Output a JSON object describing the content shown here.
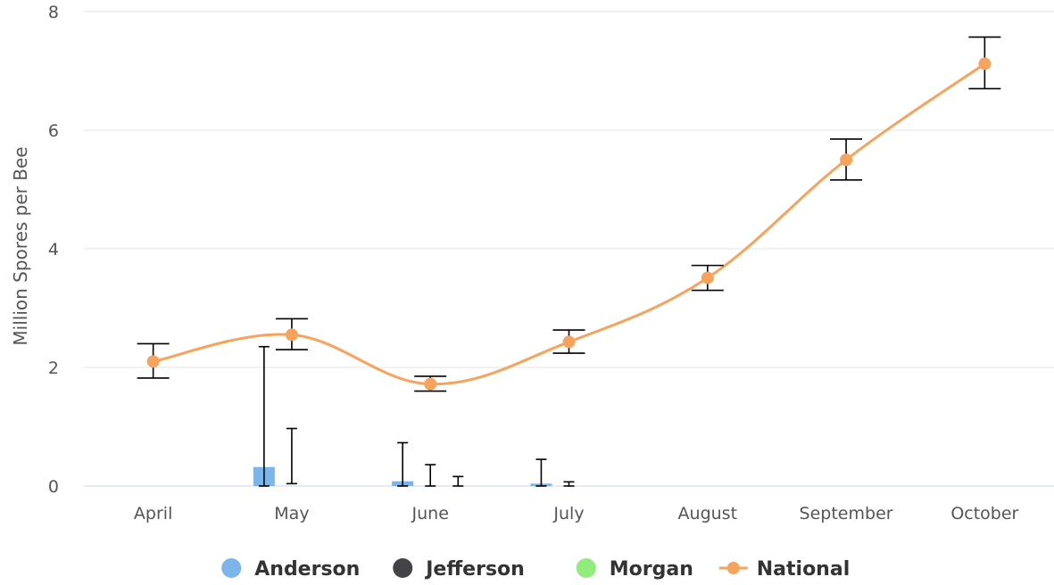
{
  "chart_data": {
    "type": "bar",
    "categories": [
      "April",
      "May",
      "June",
      "July",
      "August",
      "September",
      "October"
    ],
    "ylabel": "Million Spores per Bee",
    "ylim": [
      0,
      8
    ],
    "yticks": [
      0,
      2,
      4,
      6,
      8
    ],
    "grid": true,
    "legend_position": "bottom-center",
    "series": [
      {
        "name": "Anderson",
        "kind": "bar",
        "color": "#7cb5ec",
        "values": [
          null,
          0.32,
          0.08,
          0.04,
          null,
          null,
          null
        ],
        "error_high": [
          null,
          2.35,
          0.73,
          0.45,
          null,
          null,
          null
        ],
        "error_low": [
          null,
          0,
          0,
          0,
          null,
          null,
          null
        ]
      },
      {
        "name": "Jefferson",
        "kind": "bar",
        "color": "#434348",
        "values": [
          null,
          0.0,
          0.0,
          0.0,
          null,
          null,
          null
        ],
        "error_high": [
          null,
          0.97,
          0.36,
          0.07,
          null,
          null,
          null
        ],
        "error_low": [
          null,
          0.04,
          0.0,
          0.0,
          null,
          null,
          null
        ]
      },
      {
        "name": "Morgan",
        "kind": "bar",
        "color": "#90ed7d",
        "values": [
          null,
          null,
          0.0,
          null,
          null,
          null,
          null
        ],
        "error_high": [
          null,
          null,
          0.16,
          null,
          null,
          null,
          null
        ],
        "error_low": [
          null,
          null,
          0.0,
          null,
          null,
          null,
          null
        ]
      },
      {
        "name": "National",
        "kind": "spline",
        "color": "#f7a35c",
        "values": [
          2.1,
          2.55,
          1.72,
          2.43,
          3.51,
          5.5,
          7.12
        ],
        "error_high": [
          2.4,
          2.82,
          1.85,
          2.63,
          3.72,
          5.85,
          7.57
        ],
        "error_low": [
          1.82,
          2.3,
          1.6,
          2.24,
          3.3,
          5.16,
          6.7
        ]
      }
    ]
  }
}
